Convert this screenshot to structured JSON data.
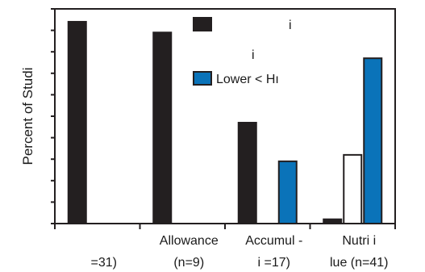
{
  "chart_data": {
    "type": "bar",
    "title": "",
    "ylabel": "Percent of Studi",
    "xlabel": "",
    "ylim": [
      0,
      100
    ],
    "y_ticks": 10,
    "grid": false,
    "legend_placement": "top-right",
    "category_labels": [
      {
        "line1": "",
        "line2": "=31)"
      },
      {
        "line1": "Allowance",
        "line2": "(n=9)"
      },
      {
        "line1": "Accumul  -",
        "line2": "i       =17)"
      },
      {
        "line1": "Nutri i",
        "line2": "lue (n=41)"
      }
    ],
    "series": [
      {
        "key": "black",
        "color": "#231f20",
        "stroke": "#231f20",
        "values": [
          94,
          89,
          47,
          2
        ]
      },
      {
        "key": "white",
        "color": "#ffffff",
        "stroke": "#231f20",
        "values": [
          0,
          0,
          0,
          32
        ]
      },
      {
        "key": "blue",
        "color": "#0a73b9",
        "stroke": "#231f20",
        "values": [
          0,
          0,
          29,
          77
        ]
      }
    ],
    "legend": [
      {
        "color": "#231f20",
        "label": "i"
      },
      {
        "color": "#ffffff",
        "label": "i"
      },
      {
        "color": "#0a73b9",
        "label": "Lower < Hı"
      }
    ]
  }
}
